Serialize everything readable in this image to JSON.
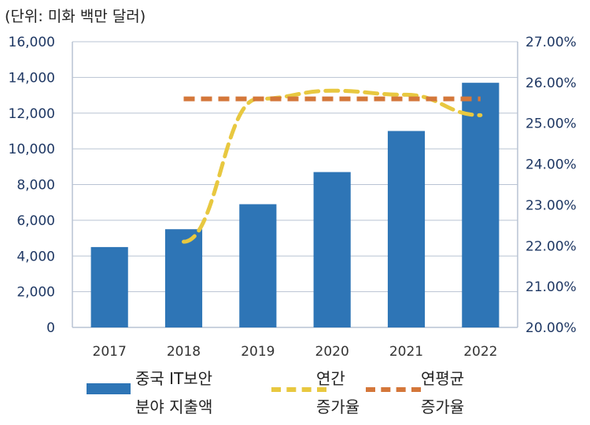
{
  "unit_label": "(단위: 미화 백만 달러)",
  "legend": {
    "bar_label_line1": "중국 IT보안",
    "bar_label_line2": "분야 지출액",
    "annual_line1": "연간",
    "annual_line2": "증가율",
    "cagr_line1": "연평균",
    "cagr_line2": "증가율"
  },
  "colors": {
    "bar": "#2e75b6",
    "annual": "#e8c840",
    "cagr": "#d4773a",
    "axis_text": "#1f3864",
    "grid": "#b9c3d3"
  },
  "chart_data": {
    "type": "bar",
    "categories": [
      "2017",
      "2018",
      "2019",
      "2020",
      "2021",
      "2022"
    ],
    "series": [
      {
        "name": "중국 IT보안 분야 지출액",
        "type": "bar",
        "axis": "left",
        "values": [
          4500,
          5500,
          6900,
          8700,
          11000,
          13700
        ]
      },
      {
        "name": "연간 증가율",
        "type": "line",
        "axis": "right",
        "style": "dashed",
        "x": [
          "2018",
          "2019",
          "2020",
          "2021",
          "2022"
        ],
        "values": [
          22.1,
          25.6,
          25.8,
          25.7,
          25.2
        ]
      },
      {
        "name": "연평균 증가율",
        "type": "line",
        "axis": "right",
        "style": "dashed",
        "x": [
          "2018",
          "2022"
        ],
        "values": [
          25.6,
          25.6
        ]
      }
    ],
    "y_left": {
      "ylim": [
        0,
        16000
      ],
      "ticks": [
        "0",
        "2,000",
        "4,000",
        "6,000",
        "8,000",
        "10,000",
        "12,000",
        "14,000",
        "16,000"
      ]
    },
    "y_right": {
      "ylim": [
        20,
        27
      ],
      "ticks": [
        "20.00%",
        "21.00%",
        "22.00%",
        "23.00%",
        "24.00%",
        "25.00%",
        "26.00%",
        "27.00%"
      ]
    },
    "grid": true
  }
}
